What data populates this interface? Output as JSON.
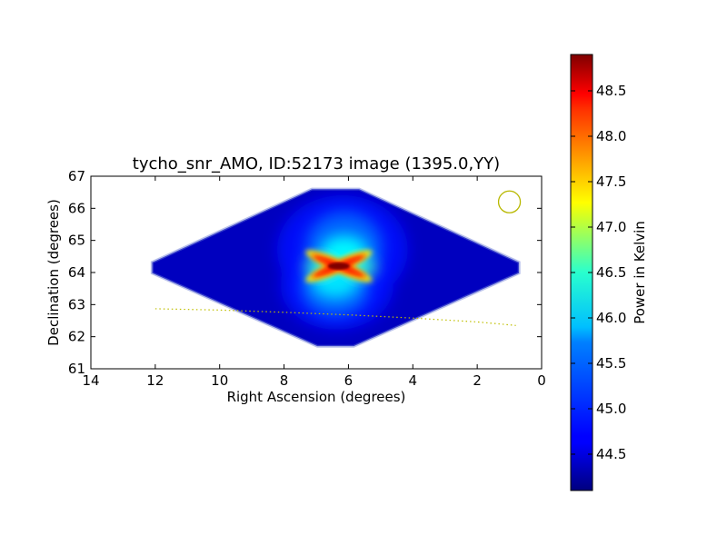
{
  "chart_data": {
    "type": "heatmap",
    "title": "tycho_snr_AMO, ID:52173 image (1395.0,YY)",
    "xlabel": "Right Ascension (degrees)",
    "ylabel": "Declination (degrees)",
    "xlim": [
      14,
      0
    ],
    "ylim": [
      61,
      67
    ],
    "x_ticks": [
      14,
      12,
      10,
      8,
      6,
      4,
      2,
      0
    ],
    "y_ticks": [
      61,
      62,
      63,
      64,
      65,
      66,
      67
    ],
    "x_tick_labels": [
      "14",
      "12",
      "10",
      "8",
      "6",
      "4",
      "2",
      "0"
    ],
    "y_tick_labels": [
      "61",
      "62",
      "63",
      "64",
      "65",
      "66",
      "67"
    ],
    "x_inverted": true,
    "grid": false,
    "colormap": "jet",
    "colorbar": {
      "label": "Power in Kelvin",
      "range": [
        44.1,
        48.9
      ],
      "ticks": [
        44.5,
        45.0,
        45.5,
        46.0,
        46.5,
        47.0,
        47.5,
        48.0,
        48.5
      ],
      "tick_labels": [
        "44.5",
        "45.0",
        "45.5",
        "46.0",
        "46.5",
        "47.0",
        "47.5",
        "48.0",
        "48.5"
      ]
    },
    "footprint": {
      "shape": "diamond",
      "ra_range": [
        0.7,
        12.1
      ],
      "dec_range": [
        61.7,
        66.6
      ],
      "background_value": 44.4
    },
    "source": {
      "ra": 6.3,
      "dec": 64.2,
      "peak_value": 48.9
    },
    "beam_circle": {
      "ra": 1.0,
      "dec": 66.2
    },
    "galactic_plane_line": {
      "color": "#bfbf00",
      "ra": [
        12.0,
        10.0,
        8.0,
        6.0,
        4.0,
        2.0,
        0.8
      ],
      "dec": [
        62.87,
        62.83,
        62.76,
        62.68,
        62.58,
        62.46,
        62.35
      ]
    }
  }
}
